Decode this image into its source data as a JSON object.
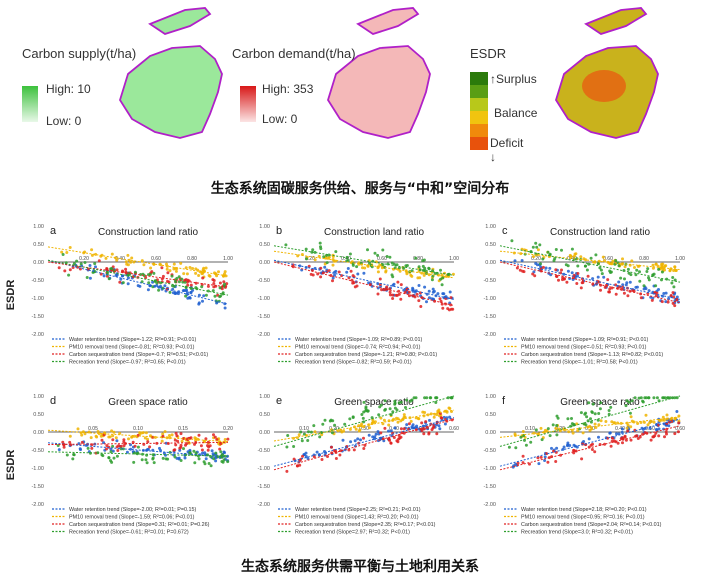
{
  "maps": {
    "supply": {
      "title": "Carbon supply(t/ha)",
      "high_label": "High:",
      "high_value": "10",
      "low_label": "Low: 0",
      "high_color": "#3cc13c",
      "low_color": "#e8f8e8",
      "map_fill": "#9be89b"
    },
    "demand": {
      "title": "Carbon demand(t/ha)",
      "high_label": "High:",
      "high_value": "353",
      "low_label": "Low: 0",
      "high_color": "#d81818",
      "low_color": "#fbe4e4",
      "map_fill": "#f4b8b8"
    },
    "esdr": {
      "title": "ESDR",
      "labels": [
        "Surplus",
        "Balance",
        "Deficit"
      ],
      "classes": [
        "#2b7a0b",
        "#5a9e14",
        "#b8c81a",
        "#f1c40f",
        "#f08a0c",
        "#e8520c"
      ],
      "map_fill": "#c9b21c"
    },
    "outline_color": "#b020c8"
  },
  "caption_top": "生态系统固碳服务供给、服务与“中和”空间分布",
  "caption_bottom": "生态系统服务供需平衡与土地利用关系",
  "ylabel": "ESDR",
  "series_colors": {
    "water": "#1f5fd0",
    "pm10": "#f0b400",
    "carbon": "#e02020",
    "recreation": "#2e9e2e"
  },
  "chart_data": [
    {
      "panel": "a",
      "title": "Construction land ratio",
      "type": "scatter",
      "xlim": [
        0,
        1.0
      ],
      "ylim": [
        -2.0,
        1.0
      ],
      "xticks": [
        "0.20",
        "0.40",
        "0.60",
        "0.80",
        "1.00"
      ],
      "xtick_values": [
        0.2,
        0.4,
        0.6,
        0.8,
        1.0
      ],
      "yticks": [
        "1.00",
        "0.50",
        "0.00",
        "-0.50",
        "-1.00",
        "-1.50",
        "-2.00"
      ],
      "series": [
        {
          "key": "water",
          "name": "Water retention trend",
          "stats": "(Slope=-1.22; R²=0.91; P<0.01)",
          "slope": -1.22,
          "intercept": 0.05
        },
        {
          "key": "pm10",
          "name": "PM10 removal trend",
          "stats": "(Slope=-0.81; R²=0.93; P<0.01)",
          "slope": -0.81,
          "intercept": 0.42
        },
        {
          "key": "carbon",
          "name": "Carbon sequestration trend",
          "stats": "(Slope=-0.7; R²=0.51; P<0.01)",
          "slope": -0.7,
          "intercept": 0.0
        },
        {
          "key": "recreation",
          "name": "Recreation trend",
          "stats": "(Slope=-0.97; R²=0.65; P<0.01)",
          "slope": -0.97,
          "intercept": 0.05
        }
      ]
    },
    {
      "panel": "b",
      "title": "Construction land ratio",
      "type": "scatter",
      "xlim": [
        0,
        1.0
      ],
      "ylim": [
        -2.0,
        1.0
      ],
      "xticks": [
        "0.20",
        "0.40",
        "0.60",
        "0.80",
        "1.00"
      ],
      "xtick_values": [
        0.2,
        0.4,
        0.6,
        0.8,
        1.0
      ],
      "yticks": [
        "1.00",
        "0.50",
        "0.00",
        "-0.50",
        "-1.00",
        "-1.50",
        "-2.00"
      ],
      "series": [
        {
          "key": "water",
          "name": "Water retention trend",
          "stats": "(Slope=-1.09; R²=0.89; P<0.01)",
          "slope": -1.09,
          "intercept": 0.05
        },
        {
          "key": "pm10",
          "name": "PM10 removal trend",
          "stats": "(Slope=-0.74; R²=0.94; P<0.01)",
          "slope": -0.74,
          "intercept": 0.3
        },
        {
          "key": "carbon",
          "name": "Carbon sequestration trend",
          "stats": "(Slope=-1.21; R²=0.80; P<0.01)",
          "slope": -1.21,
          "intercept": 0.0
        },
        {
          "key": "recreation",
          "name": "Recreation trend",
          "stats": "(Slope=-0.82; R²=0.59; P<0.01)",
          "slope": -0.82,
          "intercept": 0.45
        }
      ]
    },
    {
      "panel": "c",
      "title": "Construction land ratio",
      "type": "scatter",
      "xlim": [
        0,
        1.0
      ],
      "ylim": [
        -2.0,
        1.0
      ],
      "xticks": [
        "0.20",
        "0.40",
        "0.60",
        "0.80",
        "1.00"
      ],
      "xtick_values": [
        0.2,
        0.4,
        0.6,
        0.8,
        1.0
      ],
      "yticks": [
        "1.00",
        "0.50",
        "0.00",
        "-0.50",
        "-1.00",
        "-1.50",
        "-2.00"
      ],
      "series": [
        {
          "key": "water",
          "name": "Water retention trend",
          "stats": "(Slope=-1.09; R²=0.91; P<0.01)",
          "slope": -1.09,
          "intercept": 0.05
        },
        {
          "key": "pm10",
          "name": "PM10 removal trend",
          "stats": "(Slope=-0.51; R²=0.93; P<0.01)",
          "slope": -0.51,
          "intercept": 0.3
        },
        {
          "key": "carbon",
          "name": "Carbon sequestration trend",
          "stats": "(Slope=-1.13; R²=0.82; P<0.01)",
          "slope": -1.13,
          "intercept": 0.0
        },
        {
          "key": "recreation",
          "name": "Recreation trend",
          "stats": "(Slope=-1.01; R²=0.58; P<0.01)",
          "slope": -1.01,
          "intercept": 0.45
        }
      ]
    },
    {
      "panel": "d",
      "title": "Green space ratio",
      "type": "scatter",
      "xlim": [
        0,
        0.2
      ],
      "ylim": [
        -2.0,
        1.0
      ],
      "xticks": [
        "0.05",
        "0.10",
        "0.15",
        "0.20"
      ],
      "xtick_values": [
        0.05,
        0.1,
        0.15,
        0.2
      ],
      "yticks": [
        "1.00",
        "0.50",
        "0.00",
        "-0.50",
        "-1.00",
        "-1.50",
        "-2.00"
      ],
      "series": [
        {
          "key": "water",
          "name": "Water retention trend",
          "stats": "(Slope=-2.00; R²=0.01; P=0.15)",
          "slope": -2.0,
          "intercept": -0.3
        },
        {
          "key": "pm10",
          "name": "PM10 removal trend",
          "stats": "(Slope=-1.59; R²=0.06; P<0.01)",
          "slope": -1.59,
          "intercept": 0.05
        },
        {
          "key": "carbon",
          "name": "Carbon sequestration trend",
          "stats": "(Slope=0.31; R²=0.01; P=0.26)",
          "slope": 0.31,
          "intercept": -0.35
        },
        {
          "key": "recreation",
          "name": "Recreation trend",
          "stats": "(Slope=-0.61; R²=0.01; P=0.672)",
          "slope": -0.61,
          "intercept": -0.55
        }
      ]
    },
    {
      "panel": "e",
      "title": "Green space ratio",
      "type": "scatter",
      "xlim": [
        0,
        0.6
      ],
      "ylim": [
        -2.0,
        1.0
      ],
      "xticks": [
        "0.10",
        "0.20",
        "0.30",
        "0.40",
        "0.50",
        "0.60"
      ],
      "xtick_values": [
        0.1,
        0.2,
        0.3,
        0.4,
        0.5,
        0.6
      ],
      "yticks": [
        "1.00",
        "0.50",
        "0.00",
        "-0.50",
        "-1.00",
        "-1.50",
        "-2.00"
      ],
      "series": [
        {
          "key": "water",
          "name": "Water retention trend",
          "stats": "(Slope=2.25; R²=0.21; P<0.01)",
          "slope": 2.25,
          "intercept": -0.95
        },
        {
          "key": "pm10",
          "name": "PM10 removal trend",
          "stats": "(Slope=1.43; R²=0.20; P<0.01)",
          "slope": 1.43,
          "intercept": -0.25
        },
        {
          "key": "carbon",
          "name": "Carbon sequestration trend",
          "stats": "(Slope=2.35; R²=0.17; P<0.01)",
          "slope": 2.35,
          "intercept": -1.05
        },
        {
          "key": "recreation",
          "name": "Recreation trend",
          "stats": "(Slope=2.97; R²=0.32; P<0.01)",
          "slope": 2.97,
          "intercept": -0.4
        }
      ]
    },
    {
      "panel": "f",
      "title": "Green space ratio",
      "type": "scatter",
      "xlim": [
        0,
        0.6
      ],
      "ylim": [
        -2.0,
        1.0
      ],
      "xticks": [
        "0.10",
        "0.20",
        "0.30",
        "0.40",
        "0.50",
        "0.60"
      ],
      "xtick_values": [
        0.1,
        0.2,
        0.3,
        0.4,
        0.5,
        0.6
      ],
      "yticks": [
        "1.00",
        "0.50",
        "0.00",
        "-0.50",
        "-1.00",
        "-1.50",
        "-2.00"
      ],
      "series": [
        {
          "key": "water",
          "name": "Water retention trend",
          "stats": "(Slope=2.18; R²=0.20; P<0.01)",
          "slope": 2.18,
          "intercept": -0.95
        },
        {
          "key": "pm10",
          "name": "PM10 removal trend",
          "stats": "(Slope=0.95; R²=0.16; P<0.01)",
          "slope": 0.95,
          "intercept": -0.15
        },
        {
          "key": "carbon",
          "name": "Carbon sequestration trend",
          "stats": "(Slope=2.04; R²=0.14; P<0.01)",
          "slope": 2.04,
          "intercept": -1.05
        },
        {
          "key": "recreation",
          "name": "Recreation trend",
          "stats": "(Slope=3.0; R²=0.32; P<0.01)",
          "slope": 3.0,
          "intercept": -0.4
        }
      ]
    }
  ]
}
